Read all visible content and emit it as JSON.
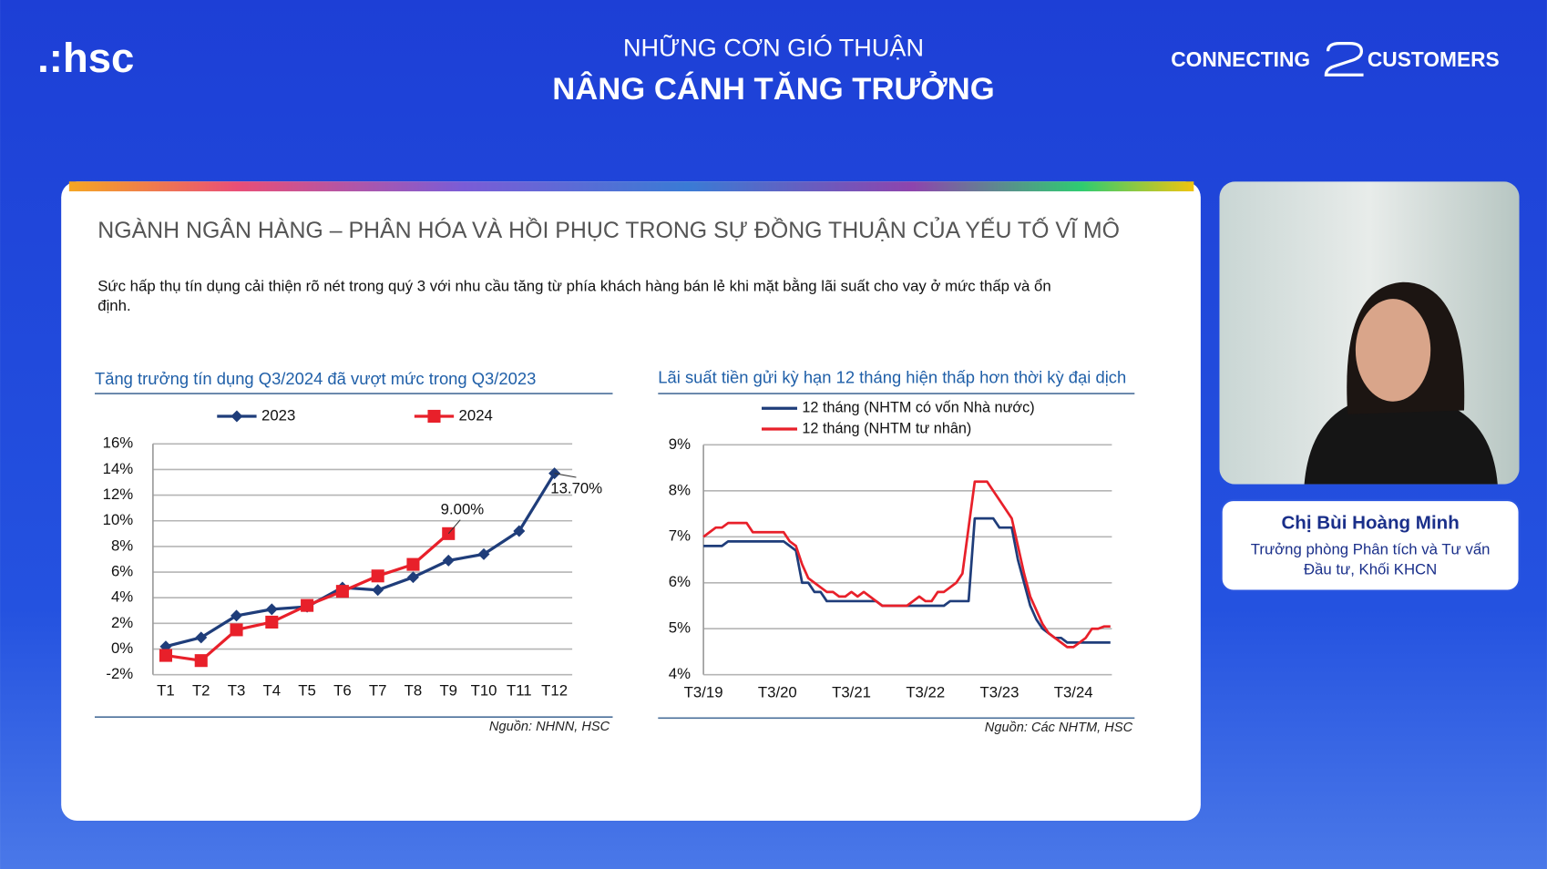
{
  "header": {
    "logo": ".:hsc",
    "title_line1": "NHỮNG CƠN GIÓ THUẬN",
    "title_line2": "NÂNG CÁNH TĂNG TRƯỞNG",
    "tagline_left": "CONNECTING",
    "tagline_right": "CUSTOMERS"
  },
  "slide": {
    "heading": "NGÀNH NGÂN HÀNG – PHÂN HÓA VÀ HỒI PHỤC TRONG SỰ ĐỒNG THUẬN CỦA YẾU TỐ VĨ MÔ",
    "text_line1": "Sức hấp thụ tín dụng cải thiện rõ nét trong quý 3 với nhu cầu tăng từ phía khách hàng bán lẻ khi mặt bằng lãi suất cho vay ở mức thấp và ổn",
    "text_line2": "định."
  },
  "speaker": {
    "name": "Chị Bùi Hoàng Minh",
    "role_line1": "Trưởng phòng Phân tích và Tư vấn",
    "role_line2": "Đầu tư, Khối KHCN"
  },
  "chart_data": [
    {
      "type": "line",
      "title": "Tăng trưởng tín dụng Q3/2024 đã vượt mức trong Q3/2023",
      "source": "Nguồn: NHNN, HSC",
      "categories": [
        "T1",
        "T2",
        "T3",
        "T4",
        "T5",
        "T6",
        "T7",
        "T8",
        "T9",
        "T10",
        "T11",
        "T12"
      ],
      "series": [
        {
          "name": "2023",
          "color": "#1f3d7a",
          "marker": "diamond",
          "values": [
            0.2,
            0.9,
            2.6,
            3.1,
            3.3,
            4.8,
            4.6,
            5.6,
            6.9,
            7.4,
            9.2,
            13.7
          ],
          "value_labels": [
            null,
            null,
            null,
            null,
            null,
            null,
            null,
            null,
            null,
            null,
            null,
            "13.70%"
          ]
        },
        {
          "name": "2024",
          "color": "#e8202a",
          "marker": "square",
          "values": [
            -0.5,
            -0.9,
            1.5,
            2.1,
            3.4,
            4.5,
            5.7,
            6.6,
            9.0,
            null,
            null,
            null
          ],
          "value_labels": [
            null,
            null,
            null,
            null,
            null,
            null,
            null,
            null,
            "9.00%",
            null,
            null,
            null
          ]
        }
      ],
      "ylim": [
        -2,
        16
      ],
      "yticks": [
        {
          "value": -2,
          "label": "-2%"
        },
        {
          "value": 0,
          "label": "0%"
        },
        {
          "value": 2,
          "label": "2%"
        },
        {
          "value": 4,
          "label": "4%"
        },
        {
          "value": 6,
          "label": "6%"
        },
        {
          "value": 8,
          "label": "8%"
        },
        {
          "value": 10,
          "label": "10%"
        },
        {
          "value": 12,
          "label": "12%"
        },
        {
          "value": 14,
          "label": "14%"
        },
        {
          "value": 16,
          "label": "16%"
        }
      ],
      "grid": true,
      "legend": "top"
    },
    {
      "type": "line",
      "title": "Lãi suất tiền gửi kỳ hạn 12 tháng hiện thấp hơn thời kỳ đại dịch",
      "source": "Nguồn: Các NHTM, HSC",
      "categories": [
        "T3/19",
        null,
        null,
        null,
        null,
        null,
        null,
        null,
        null,
        null,
        null,
        null,
        "T3/20",
        null,
        null,
        null,
        null,
        null,
        null,
        null,
        null,
        null,
        null,
        null,
        "T3/21",
        null,
        null,
        null,
        null,
        null,
        null,
        null,
        null,
        null,
        null,
        null,
        "T3/22",
        null,
        null,
        null,
        null,
        null,
        null,
        null,
        null,
        null,
        null,
        null,
        "T3/23",
        null,
        null,
        null,
        null,
        null,
        null,
        null,
        null,
        null,
        null,
        null,
        "T3/24",
        null,
        null,
        null,
        null,
        null,
        null
      ],
      "series": [
        {
          "name": "12 tháng (NHTM có vốn Nhà nước)",
          "color": "#1f3d7a",
          "values": [
            6.8,
            6.8,
            6.8,
            6.8,
            6.9,
            6.9,
            6.9,
            6.9,
            6.9,
            6.9,
            6.9,
            6.9,
            6.9,
            6.9,
            6.8,
            6.7,
            6.0,
            6.0,
            5.8,
            5.8,
            5.6,
            5.6,
            5.6,
            5.6,
            5.6,
            5.6,
            5.6,
            5.6,
            5.6,
            5.5,
            5.5,
            5.5,
            5.5,
            5.5,
            5.5,
            5.5,
            5.5,
            5.5,
            5.5,
            5.5,
            5.6,
            5.6,
            5.6,
            5.6,
            7.4,
            7.4,
            7.4,
            7.4,
            7.2,
            7.2,
            7.2,
            6.5,
            6.0,
            5.5,
            5.2,
            5.0,
            4.9,
            4.8,
            4.8,
            4.7,
            4.7,
            4.7,
            4.7,
            4.7,
            4.7,
            4.7,
            4.7
          ]
        },
        {
          "name": "12 tháng (NHTM tư nhân)",
          "color": "#e8202a",
          "values": [
            7.0,
            7.1,
            7.2,
            7.2,
            7.3,
            7.3,
            7.3,
            7.3,
            7.1,
            7.1,
            7.1,
            7.1,
            7.1,
            7.1,
            6.9,
            6.8,
            6.4,
            6.1,
            6.0,
            5.9,
            5.8,
            5.8,
            5.7,
            5.7,
            5.8,
            5.7,
            5.8,
            5.7,
            5.6,
            5.5,
            5.5,
            5.5,
            5.5,
            5.5,
            5.6,
            5.7,
            5.6,
            5.6,
            5.8,
            5.8,
            5.9,
            6.0,
            6.2,
            7.2,
            8.2,
            8.2,
            8.2,
            8.0,
            7.8,
            7.6,
            7.4,
            6.8,
            6.2,
            5.7,
            5.4,
            5.1,
            4.9,
            4.8,
            4.7,
            4.6,
            4.6,
            4.7,
            4.8,
            5.0,
            5.0,
            5.05,
            5.05
          ]
        }
      ],
      "ylim": [
        4,
        9
      ],
      "yticks": [
        {
          "value": 4,
          "label": "4%"
        },
        {
          "value": 5,
          "label": "5%"
        },
        {
          "value": 6,
          "label": "6%"
        },
        {
          "value": 7,
          "label": "7%"
        },
        {
          "value": 8,
          "label": "8%"
        },
        {
          "value": 9,
          "label": "9%"
        }
      ],
      "grid": true,
      "legend": "top"
    }
  ]
}
